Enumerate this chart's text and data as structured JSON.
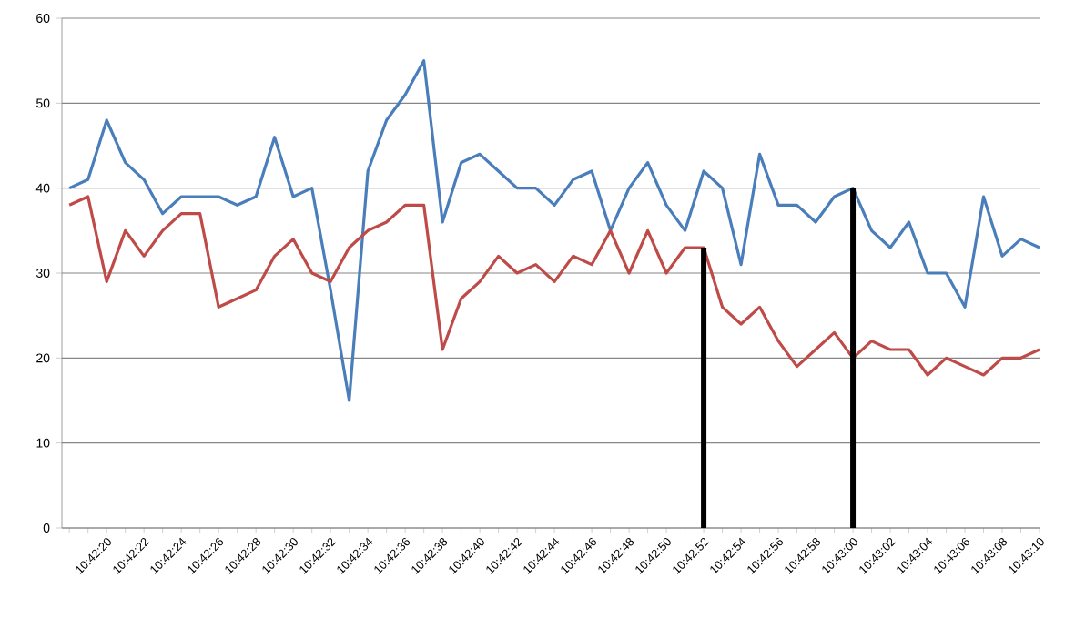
{
  "chart_data": {
    "type": "line",
    "categories": [
      null,
      null,
      "10:42:20",
      null,
      "10:42:22",
      null,
      "10:42:24",
      null,
      "10:42:26",
      null,
      "10:42:28",
      null,
      "10:42:30",
      null,
      "10:42:32",
      null,
      "10:42:34",
      null,
      "10:42:36",
      null,
      "10:42:38",
      null,
      "10:42:40",
      null,
      "10:42:42",
      null,
      "10:42:44",
      null,
      "10:42:46",
      null,
      "10:42:48",
      null,
      "10:42:50",
      null,
      "10:42:52",
      null,
      "10:42:54",
      null,
      "10:42:56",
      null,
      "10:42:58",
      null,
      "10:43:00",
      null,
      "10:43:02",
      null,
      "10:43:04",
      null,
      "10:43:06",
      null,
      "10:43:08",
      null,
      "10:43:10"
    ],
    "series": [
      {
        "color": "#4a7ebb",
        "values": [
          40,
          41,
          48,
          43,
          41,
          37,
          39,
          39,
          39,
          38,
          39,
          46,
          39,
          40,
          28,
          15,
          42,
          48,
          51,
          55,
          36,
          43,
          44,
          42,
          40,
          40,
          38,
          41,
          42,
          35,
          40,
          43,
          38,
          35,
          42,
          40,
          31,
          44,
          38,
          38,
          36,
          39,
          40,
          35,
          33,
          36,
          30,
          30,
          26,
          39,
          32,
          34,
          33
        ]
      },
      {
        "color": "#be4b48",
        "values": [
          38,
          39,
          29,
          35,
          32,
          35,
          37,
          37,
          26,
          27,
          28,
          32,
          34,
          30,
          29,
          33,
          35,
          36,
          38,
          38,
          21,
          27,
          29,
          32,
          30,
          31,
          29,
          32,
          31,
          35,
          30,
          35,
          30,
          33,
          33,
          26,
          24,
          26,
          22,
          19,
          21,
          23,
          20,
          22,
          21,
          21,
          18,
          20,
          19,
          18,
          20,
          20,
          21
        ]
      },
      {
        "type": "bar",
        "color": "#000000",
        "values": [
          null,
          null,
          null,
          null,
          null,
          null,
          null,
          null,
          null,
          null,
          null,
          null,
          null,
          null,
          null,
          null,
          null,
          null,
          null,
          null,
          null,
          null,
          null,
          null,
          null,
          null,
          null,
          null,
          null,
          null,
          null,
          null,
          null,
          null,
          33,
          null,
          null,
          null,
          null,
          null,
          null,
          null,
          40,
          null,
          null,
          null,
          null,
          null,
          null,
          null,
          null,
          null,
          null
        ]
      }
    ],
    "ylim": [
      0,
      60
    ],
    "yticks": [
      0,
      10,
      20,
      30,
      40,
      50,
      60
    ],
    "grid": "y"
  }
}
